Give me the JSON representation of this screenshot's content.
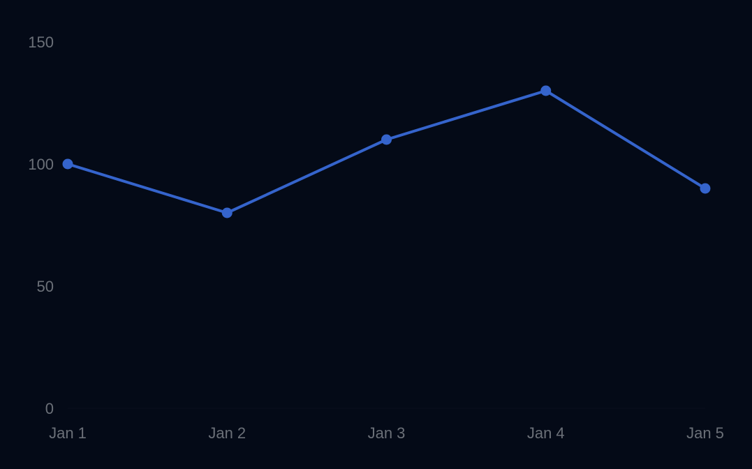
{
  "colors": {
    "background": "#040a17",
    "series": "#3564cc",
    "tick_text": "#6b7078",
    "axis_line": "#0a0f1c"
  },
  "chart_data": {
    "type": "line",
    "title": "",
    "xlabel": "",
    "ylabel": "",
    "categories": [
      "Jan 1",
      "Jan 2",
      "Jan 3",
      "Jan 4",
      "Jan 5"
    ],
    "series": [
      {
        "values": [
          100,
          80,
          110,
          130,
          90
        ]
      }
    ],
    "ylim": [
      0,
      150
    ],
    "yticks": [
      0,
      50,
      100,
      150
    ],
    "grid": false,
    "legend": "none"
  }
}
